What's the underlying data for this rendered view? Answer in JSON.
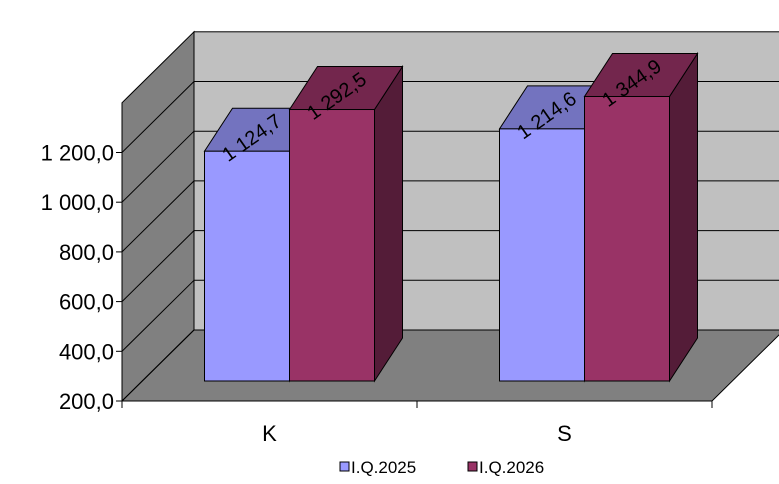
{
  "chart_data": {
    "type": "bar",
    "title": "",
    "xlabel": "",
    "ylabel": "",
    "categories": [
      "K",
      "S"
    ],
    "series": [
      {
        "name": "I.Q.2025",
        "values": [
          1124.7,
          1214.6
        ],
        "value_labels": [
          "1 124,7",
          "1 214,6"
        ],
        "color": "#9999ff"
      },
      {
        "name": "I.Q.2026",
        "values": [
          1292.5,
          1344.9
        ],
        "value_labels": [
          "1 292,5",
          "1 344,9"
        ],
        "color": "#993366"
      }
    ],
    "ylim": [
      200,
      1400
    ],
    "yticks": [
      200,
      400,
      600,
      800,
      1000,
      1200
    ],
    "ytick_labels": [
      "200,0",
      "400,0",
      "600,0",
      "800,0",
      "1 000,0",
      "1 200,0"
    ],
    "grid": true,
    "style": "3d-clustered-column",
    "legend_position": "bottom"
  }
}
